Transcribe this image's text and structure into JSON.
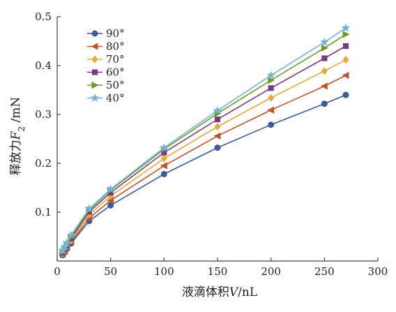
{
  "chart_data": {
    "type": "line",
    "title": "",
    "xlabel": {
      "prefix": "液滴体积",
      "variable": "V",
      "unit": "/nL"
    },
    "ylabel": {
      "prefix": "释放力",
      "variable": "F",
      "subscript": "2",
      "unit": " /mN"
    },
    "xlim": [
      0,
      300
    ],
    "ylim": [
      0,
      0.5
    ],
    "x_ticks": [
      0,
      50,
      100,
      150,
      200,
      250,
      300
    ],
    "y_ticks": [
      0.1,
      0.2,
      0.3,
      0.4,
      0.5
    ],
    "grid": false,
    "legend_position": "top-left",
    "x": [
      5,
      7,
      9,
      13,
      30,
      50,
      100,
      150,
      200,
      250,
      270
    ],
    "series": [
      {
        "name": "90°",
        "color": "#3b5b9a",
        "marker": "circle",
        "values": [
          0.012,
          0.018,
          0.025,
          0.036,
          0.082,
          0.114,
          0.178,
          0.232,
          0.279,
          0.322,
          0.34
        ]
      },
      {
        "name": "80°",
        "color": "#c0542b",
        "marker": "triangle-left",
        "values": [
          0.014,
          0.02,
          0.027,
          0.039,
          0.088,
          0.124,
          0.195,
          0.256,
          0.309,
          0.358,
          0.38
        ]
      },
      {
        "name": "70°",
        "color": "#e8a83a",
        "marker": "diamond",
        "values": [
          0.015,
          0.022,
          0.029,
          0.042,
          0.095,
          0.133,
          0.21,
          0.275,
          0.334,
          0.389,
          0.412
        ]
      },
      {
        "name": "60°",
        "color": "#7b3a7e",
        "marker": "square",
        "values": [
          0.017,
          0.024,
          0.031,
          0.046,
          0.101,
          0.14,
          0.222,
          0.29,
          0.354,
          0.415,
          0.44
        ]
      },
      {
        "name": "50°",
        "color": "#6a9a2a",
        "marker": "triangle-right",
        "values": [
          0.019,
          0.026,
          0.034,
          0.049,
          0.105,
          0.145,
          0.229,
          0.302,
          0.37,
          0.436,
          0.464
        ]
      },
      {
        "name": "40°",
        "color": "#6fb4d8",
        "marker": "star",
        "values": [
          0.021,
          0.029,
          0.037,
          0.053,
          0.107,
          0.147,
          0.232,
          0.308,
          0.38,
          0.448,
          0.477
        ]
      }
    ]
  }
}
